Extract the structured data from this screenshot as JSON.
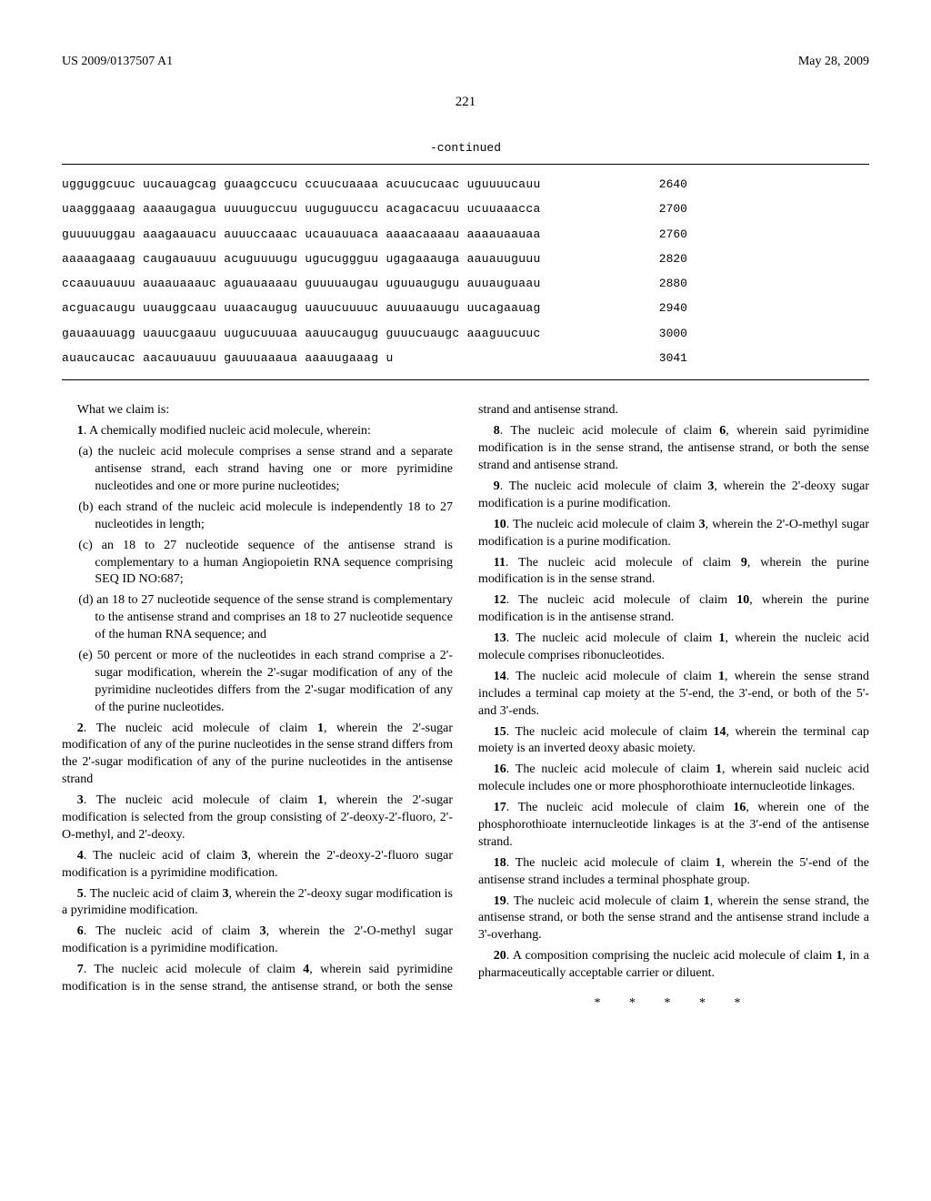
{
  "header": {
    "left": "US 2009/0137507 A1",
    "right": "May 28, 2009"
  },
  "page_number": "221",
  "continued_label": "-continued",
  "sequences": [
    {
      "text": "ugguggcuuc uucauagcag guaagccucu ccuucuaaaa acuucucaac uguuuucauu",
      "num": "2640"
    },
    {
      "text": "uaagggaaag aaaaugagua uuuuguccuu uuguguuccu acagacacuu ucuuaaacca",
      "num": "2700"
    },
    {
      "text": "guuuuuggau aaagaauacu auuuccaaac ucauauuaca aaaacaaaau aaaauaauaa",
      "num": "2760"
    },
    {
      "text": "aaaaagaaag caugauauuu acuguuuugu ugucuggguu ugagaaauga aauauuguuu",
      "num": "2820"
    },
    {
      "text": "ccaauuauuu auaauaaauc aguauaaaau guuuuaugau uguuaugugu auuauguaau",
      "num": "2880"
    },
    {
      "text": "acguacaugu uuauggcaau uuaacaugug uauucuuuuc auuuaauugu uucagaauag",
      "num": "2940"
    },
    {
      "text": "gauaauuagg uauucgaauu uugucuuuaa aauucaugug guuucuaugc aaaguucuuc",
      "num": "3000"
    },
    {
      "text": "auaucaucac aacauuauuu gauuuaaaua aaauugaaag u",
      "num": "3041"
    }
  ],
  "claims_lead": "What we claim is:",
  "claims": [
    {
      "num": "1",
      "text": "A chemically modified nucleic acid molecule, wherein:",
      "subs": [
        "(a) the nucleic acid molecule comprises a sense strand and a separate antisense strand, each strand having one or more pyrimidine nucleotides and one or more purine nucleotides;",
        "(b) each strand of the nucleic acid molecule is independently 18 to 27 nucleotides in length;",
        "(c) an 18 to 27 nucleotide sequence of the antisense strand is complementary to a human Angiopoietin RNA sequence comprising SEQ ID NO:687;",
        "(d) an 18 to 27 nucleotide sequence of the sense strand is complementary to the antisense strand and comprises an 18 to 27 nucleotide sequence of the human RNA sequence; and",
        "(e) 50 percent or more of the nucleotides in each strand comprise a 2'-sugar modification, wherein the 2'-sugar modification of any of the pyrimidine nucleotides differs from the 2'-sugar modification of any of the purine nucleotides."
      ]
    },
    {
      "num": "2",
      "ref": "1",
      "text_before": "The nucleic acid molecule of claim ",
      "text_after": ", wherein the 2'-sugar modification of any of the purine nucleotides in the sense strand differs from the 2'-sugar modification of any of the purine nucleotides in the antisense strand"
    },
    {
      "num": "3",
      "ref": "1",
      "text_before": "The nucleic acid molecule of claim ",
      "text_after": ", wherein the 2'-sugar modification is selected from the group consisting of 2'-deoxy-2'-fluoro, 2'-O-methyl, and 2'-deoxy."
    },
    {
      "num": "4",
      "ref": "3",
      "text_before": "The nucleic acid of claim ",
      "text_after": ", wherein the 2'-deoxy-2'-fluoro sugar modification is a pyrimidine modification."
    },
    {
      "num": "5",
      "ref": "3",
      "text_before": "The nucleic acid of claim ",
      "text_after": ", wherein the 2'-deoxy sugar modification is a pyrimidine modification."
    },
    {
      "num": "6",
      "ref": "3",
      "text_before": "The nucleic acid of claim ",
      "text_after": ", wherein the 2'-O-methyl sugar modification is a pyrimidine modification."
    },
    {
      "num": "7",
      "ref": "4",
      "text_before": "The nucleic acid molecule of claim ",
      "text_after": ", wherein said pyrimidine modification is in the sense strand, the antisense strand, or both the sense strand and antisense strand."
    },
    {
      "num": "8",
      "ref": "6",
      "text_before": "The nucleic acid molecule of claim ",
      "text_after": ", wherein said pyrimidine modification is in the sense strand, the antisense strand, or both the sense strand and antisense strand."
    },
    {
      "num": "9",
      "ref": "3",
      "text_before": "The nucleic acid molecule of claim ",
      "text_after": ", wherein the 2'-deoxy sugar modification is a purine modification."
    },
    {
      "num": "10",
      "ref": "3",
      "text_before": "The nucleic acid molecule of claim ",
      "text_after": ", wherein the 2'-O-methyl sugar modification is a purine modification."
    },
    {
      "num": "11",
      "ref": "9",
      "text_before": "The nucleic acid molecule of claim ",
      "text_after": ", wherein the purine modification is in the sense strand."
    },
    {
      "num": "12",
      "ref": "10",
      "text_before": "The nucleic acid molecule of claim ",
      "text_after": ", wherein the purine modification is in the antisense strand."
    },
    {
      "num": "13",
      "ref": "1",
      "text_before": "The nucleic acid molecule of claim ",
      "text_after": ", wherein the nucleic acid molecule comprises ribonucleotides."
    },
    {
      "num": "14",
      "ref": "1",
      "text_before": "The nucleic acid molecule of claim ",
      "text_after": ", wherein the sense strand includes a terminal cap moiety at the 5'-end, the 3'-end, or both of the 5'- and 3'-ends."
    },
    {
      "num": "15",
      "ref": "14",
      "text_before": "The nucleic acid molecule of claim ",
      "text_after": ", wherein the terminal cap moiety is an inverted deoxy abasic moiety."
    },
    {
      "num": "16",
      "ref": "1",
      "text_before": "The nucleic acid molecule of claim ",
      "text_after": ", wherein said nucleic acid molecule includes one or more phosphorothioate internucleotide linkages."
    },
    {
      "num": "17",
      "ref": "16",
      "text_before": "The nucleic acid molecule of claim ",
      "text_after": ", wherein one of the phosphorothioate internucleotide linkages is at the 3'-end of the antisense strand."
    },
    {
      "num": "18",
      "ref": "1",
      "text_before": "The nucleic acid molecule of claim ",
      "text_after": ", wherein the 5'-end of the antisense strand includes a terminal phosphate group."
    },
    {
      "num": "19",
      "ref": "1",
      "text_before": "The nucleic acid molecule of claim ",
      "text_after": ", wherein the sense strand, the antisense strand, or both the sense strand and the antisense strand include a 3'-overhang."
    },
    {
      "num": "20",
      "ref": "1",
      "text_before": "A composition comprising the nucleic acid molecule of claim ",
      "text_after": ", in a pharmaceutically acceptable carrier or diluent."
    }
  ],
  "end_marks": "* * * * *"
}
